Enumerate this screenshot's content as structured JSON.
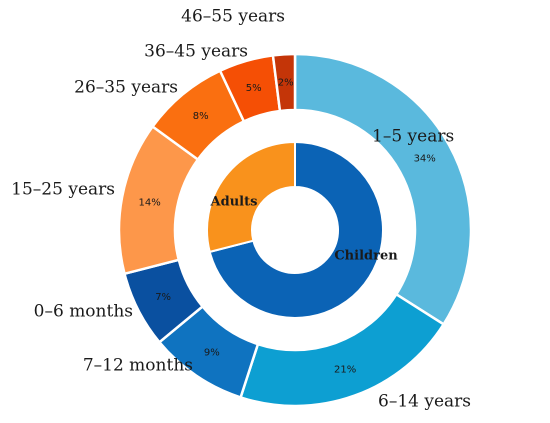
{
  "chart_data": {
    "type": "pie",
    "style": "nested-donut",
    "outer_ring": {
      "categories": [
        "1–5 years",
        "6–14 years",
        "7–12 months",
        "0–6 months",
        "15–25 years",
        "26–35 years",
        "36–45 years",
        "46–55 years"
      ],
      "values": [
        34,
        21,
        9,
        7,
        14,
        8,
        5,
        2
      ],
      "value_labels": [
        "34%",
        "21%",
        "9%",
        "7%",
        "14%",
        "8%",
        "5%",
        "2%"
      ],
      "colors": [
        "#5ab9dd",
        "#0d9fd2",
        "#0f73c0",
        "#0a50a0",
        "#fd974a",
        "#fa6f10",
        "#f54f05",
        "#c43508"
      ]
    },
    "inner_ring": {
      "categories": [
        "Children",
        "Adults"
      ],
      "values": [
        71,
        29
      ],
      "colors": [
        "#0b63b5",
        "#f9921c"
      ]
    },
    "title": "",
    "legend": "none"
  }
}
